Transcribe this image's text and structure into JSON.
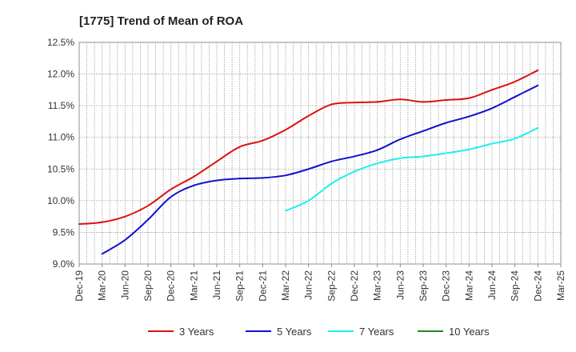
{
  "chart_data": {
    "type": "line",
    "title": "[1775]  Trend of Mean of ROA",
    "xlabel": "",
    "ylabel": "",
    "ylim": [
      9.0,
      12.5
    ],
    "y_ticks": [
      "9.0%",
      "9.5%",
      "10.0%",
      "10.5%",
      "11.0%",
      "11.5%",
      "12.0%",
      "12.5%"
    ],
    "x_ticks": [
      "Dec-19",
      "Mar-20",
      "Jun-20",
      "Sep-20",
      "Dec-20",
      "Mar-21",
      "Jun-21",
      "Sep-21",
      "Dec-21",
      "Mar-22",
      "Jun-22",
      "Sep-22",
      "Dec-22",
      "Mar-23",
      "Jun-23",
      "Sep-23",
      "Dec-23",
      "Mar-24",
      "Jun-24",
      "Sep-24",
      "Dec-24",
      "Mar-25"
    ],
    "grid": true,
    "legend_position": "bottom",
    "series": [
      {
        "name": "3 Years",
        "color": "#dd1111",
        "x": [
          "Dec-19",
          "Mar-20",
          "Jun-20",
          "Sep-20",
          "Dec-20",
          "Mar-21",
          "Jun-21",
          "Sep-21",
          "Dec-21",
          "Mar-22",
          "Jun-22",
          "Sep-22",
          "Dec-22",
          "Mar-23",
          "Jun-23",
          "Sep-23",
          "Dec-23",
          "Mar-24",
          "Jun-24",
          "Sep-24",
          "Dec-24"
        ],
        "values": [
          9.63,
          9.66,
          9.75,
          9.92,
          10.18,
          10.38,
          10.62,
          10.85,
          10.95,
          11.12,
          11.34,
          11.52,
          11.55,
          11.56,
          11.6,
          11.56,
          11.59,
          11.62,
          11.75,
          11.88,
          12.06
        ]
      },
      {
        "name": "5 Years",
        "color": "#1111cc",
        "x": [
          "Mar-20",
          "Jun-20",
          "Sep-20",
          "Dec-20",
          "Mar-21",
          "Jun-21",
          "Sep-21",
          "Dec-21",
          "Mar-22",
          "Jun-22",
          "Sep-22",
          "Dec-22",
          "Mar-23",
          "Jun-23",
          "Sep-23",
          "Dec-23",
          "Mar-24",
          "Jun-24",
          "Sep-24",
          "Dec-24"
        ],
        "values": [
          9.16,
          9.38,
          9.7,
          10.06,
          10.24,
          10.32,
          10.35,
          10.36,
          10.4,
          10.5,
          10.62,
          10.7,
          10.8,
          10.97,
          11.1,
          11.23,
          11.33,
          11.46,
          11.64,
          11.82
        ]
      },
      {
        "name": "7 Years",
        "color": "#22eeee",
        "x": [
          "Mar-22",
          "Jun-22",
          "Sep-22",
          "Dec-22",
          "Mar-23",
          "Jun-23",
          "Sep-23",
          "Dec-23",
          "Mar-24",
          "Jun-24",
          "Sep-24",
          "Dec-24"
        ],
        "values": [
          9.84,
          10.0,
          10.27,
          10.46,
          10.59,
          10.67,
          10.7,
          10.75,
          10.81,
          10.9,
          10.98,
          11.15
        ]
      },
      {
        "name": "10 Years",
        "color": "#228822",
        "x": [],
        "values": []
      }
    ]
  }
}
